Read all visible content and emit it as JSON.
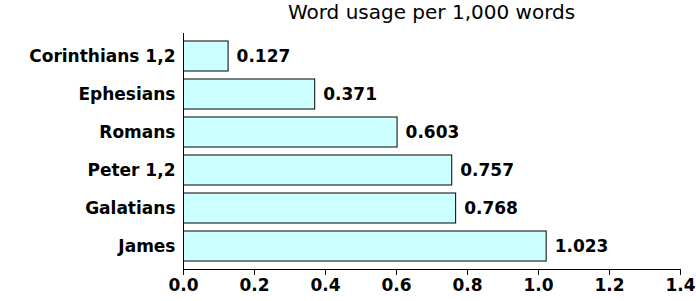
{
  "chart_data": {
    "type": "bar",
    "orientation": "horizontal",
    "title": "Word usage per 1,000 words",
    "categories": [
      "Corinthians 1,2",
      "Ephesians",
      "Romans",
      "Peter 1,2",
      "Galatians",
      "James"
    ],
    "values": [
      0.127,
      0.371,
      0.603,
      0.757,
      0.768,
      1.023
    ],
    "color": "#ccffff",
    "xlim": [
      0,
      1.4
    ],
    "xticks": [
      {
        "value": 0,
        "label": "0.0"
      },
      0.2,
      0.4,
      0.6,
      0.8,
      {
        "value": 1,
        "label": "1.0"
      },
      1.2,
      1.4
    ],
    "grid": false,
    "data_labels": true
  }
}
